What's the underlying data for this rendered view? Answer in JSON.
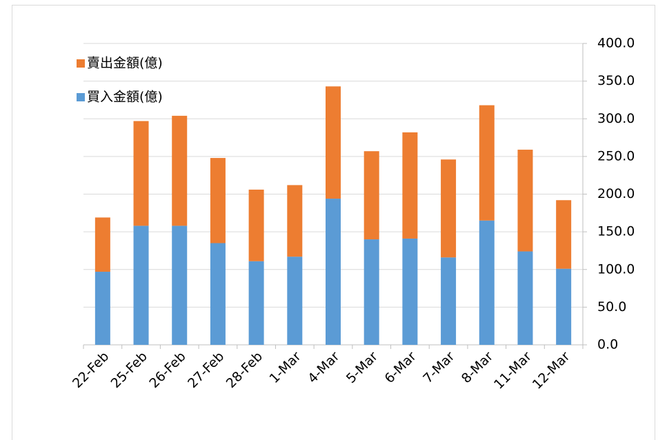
{
  "chart_data": {
    "type": "stacked-bar",
    "categories": [
      "22-Feb",
      "25-Feb",
      "26-Feb",
      "27-Feb",
      "28-Feb",
      "1-Mar",
      "4-Mar",
      "5-Mar",
      "6-Mar",
      "7-Mar",
      "8-Mar",
      "11-Mar",
      "12-Mar"
    ],
    "series": [
      {
        "name": "買入金額(億)",
        "color": "#5b9bd5",
        "values": [
          97,
          158,
          158,
          135,
          111,
          117,
          194,
          140,
          141,
          116,
          165,
          124,
          101
        ]
      },
      {
        "name": "賣出金額(億)",
        "color": "#ed7d31",
        "values": [
          72,
          139,
          146,
          113,
          95,
          95,
          149,
          117,
          141,
          130,
          153,
          135,
          91
        ]
      }
    ],
    "ylim": [
      0,
      400
    ],
    "yticks": [
      {
        "value": 0,
        "label": "0.0"
      },
      {
        "value": 50,
        "label": "50.0"
      },
      {
        "value": 100,
        "label": "100.0"
      },
      {
        "value": 150,
        "label": "150.0"
      },
      {
        "value": 200,
        "label": "200.0"
      },
      {
        "value": 250,
        "label": "250.0"
      },
      {
        "value": 300,
        "label": "300.0"
      },
      {
        "value": 350,
        "label": "350.0"
      },
      {
        "value": 400,
        "label": "400.0"
      }
    ],
    "grid": true,
    "legend": "top-left"
  }
}
